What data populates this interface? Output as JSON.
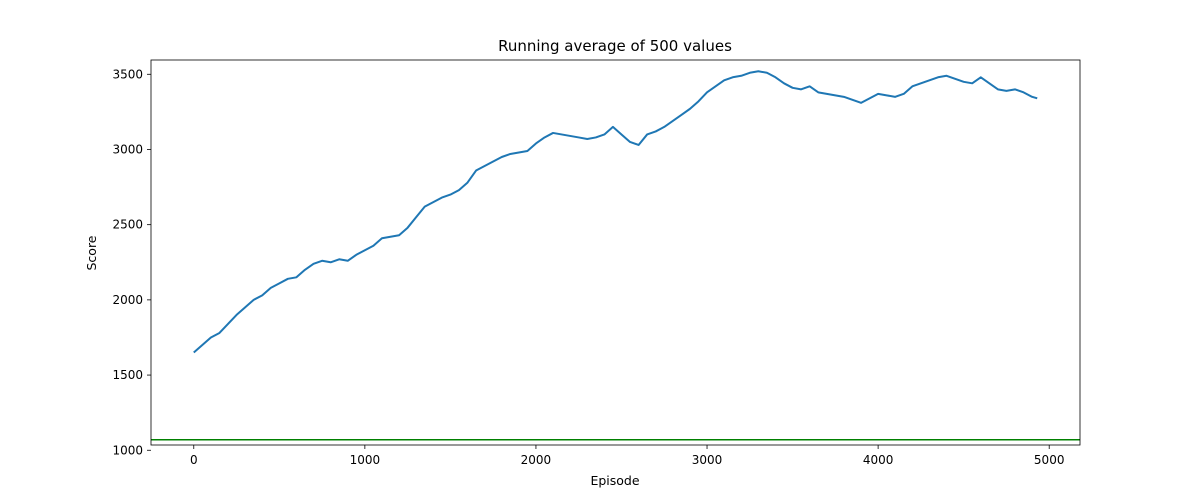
{
  "chart_data": {
    "type": "line",
    "title": "Running average of 500 values",
    "xlabel": "Episode",
    "ylabel": "Score",
    "xlim": [
      -250,
      5180
    ],
    "ylim": [
      1035,
      3595
    ],
    "xticks": [
      0,
      1000,
      2000,
      3000,
      4000,
      5000
    ],
    "yticks": [
      1000,
      1500,
      2000,
      2500,
      3000,
      3500
    ],
    "grid": false,
    "series": [
      {
        "color": "#1f77b4",
        "x": [
          0,
          50,
          100,
          150,
          200,
          250,
          300,
          350,
          400,
          450,
          500,
          550,
          600,
          650,
          700,
          750,
          800,
          850,
          900,
          950,
          1000,
          1050,
          1100,
          1150,
          1200,
          1250,
          1300,
          1350,
          1400,
          1450,
          1500,
          1550,
          1600,
          1650,
          1700,
          1750,
          1800,
          1850,
          1900,
          1950,
          2000,
          2050,
          2100,
          2150,
          2200,
          2250,
          2300,
          2350,
          2400,
          2450,
          2500,
          2550,
          2600,
          2650,
          2700,
          2750,
          2800,
          2850,
          2900,
          2950,
          3000,
          3050,
          3100,
          3150,
          3200,
          3250,
          3300,
          3350,
          3400,
          3450,
          3500,
          3550,
          3600,
          3650,
          3700,
          3750,
          3800,
          3850,
          3900,
          3950,
          4000,
          4050,
          4100,
          4150,
          4200,
          4250,
          4300,
          4350,
          4400,
          4450,
          4500,
          4550,
          4600,
          4650,
          4700,
          4750,
          4800,
          4850,
          4900,
          4930
        ],
        "y": [
          1650,
          1700,
          1750,
          1780,
          1840,
          1900,
          1950,
          2000,
          2030,
          2080,
          2110,
          2140,
          2150,
          2200,
          2240,
          2260,
          2250,
          2270,
          2260,
          2300,
          2330,
          2360,
          2410,
          2420,
          2430,
          2480,
          2550,
          2620,
          2650,
          2680,
          2700,
          2730,
          2780,
          2860,
          2890,
          2920,
          2950,
          2970,
          2980,
          2990,
          3040,
          3080,
          3110,
          3100,
          3090,
          3080,
          3070,
          3080,
          3100,
          3150,
          3100,
          3050,
          3030,
          3100,
          3120,
          3150,
          3190,
          3230,
          3270,
          3320,
          3380,
          3420,
          3460,
          3480,
          3490,
          3510,
          3520,
          3510,
          3480,
          3440,
          3410,
          3400,
          3420,
          3380,
          3370,
          3360,
          3350,
          3330,
          3310,
          3340,
          3370,
          3360,
          3350,
          3370,
          3420,
          3440,
          3460,
          3480,
          3490,
          3470,
          3450,
          3440,
          3480,
          3440,
          3400,
          3390,
          3400,
          3380,
          3350,
          3340
        ]
      },
      {
        "color": "#008000",
        "x": [
          -250,
          5180
        ],
        "y": [
          1070,
          1070
        ]
      }
    ]
  }
}
